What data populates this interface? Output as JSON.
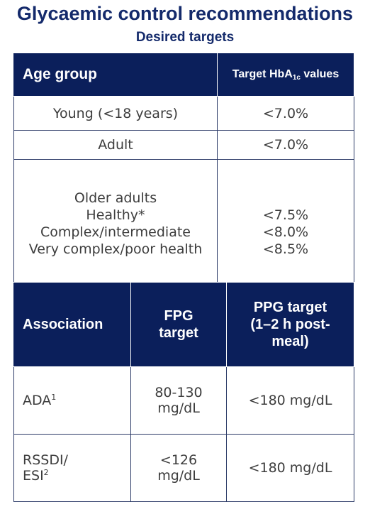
{
  "title": "Glycaemic control recommendations",
  "subtitle": "Desired targets",
  "table1": {
    "headers": {
      "age_group": "Age group",
      "target_prefix": "Target HbA",
      "target_sub": "1c",
      "target_suffix": " values"
    },
    "rows": [
      {
        "age": "Young (<18 years)",
        "target": "<7.0%"
      },
      {
        "age": "Adult",
        "target": "<7.0%"
      }
    ],
    "older": {
      "ages": [
        "Older adults",
        "Healthy*",
        "Complex/intermediate",
        "Very complex/poor health"
      ],
      "targets": [
        "<7.5%",
        "<8.0%",
        "<8.5%"
      ]
    }
  },
  "table2": {
    "headers": {
      "association": "Association",
      "fpg": [
        "FPG",
        "target"
      ],
      "ppg": [
        "PPG target",
        "(1–2 h post-",
        "meal)"
      ]
    },
    "rows": [
      {
        "assoc": "ADA",
        "sup": "1",
        "assoc2": "",
        "fpg": [
          "80-130",
          "mg/dL"
        ],
        "ppg": "<180 mg/dL"
      },
      {
        "assoc": "RSSDI/",
        "assoc2": "ESI",
        "sup": "2",
        "fpg": [
          "<126",
          "mg/dL"
        ],
        "ppg": "<180 mg/dL"
      }
    ]
  }
}
